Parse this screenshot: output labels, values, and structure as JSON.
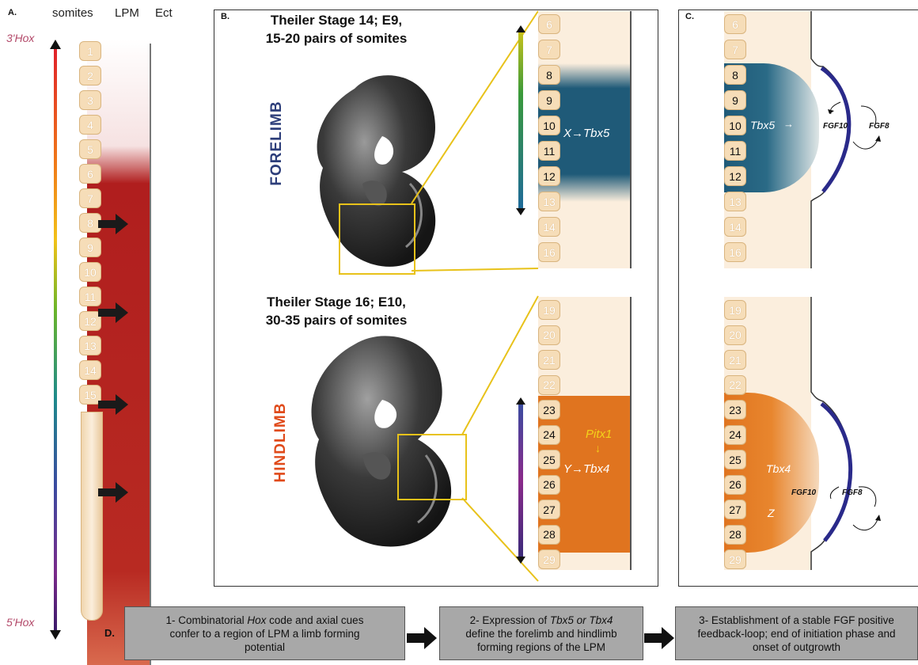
{
  "panelA": {
    "letter": "A.",
    "col_somites": "somites",
    "col_lpm": "LPM",
    "col_ect": "Ect",
    "hox_top": "3'Hox",
    "hox_bottom": "5'Hox",
    "somites": [
      "1",
      "2",
      "3",
      "4",
      "5",
      "6",
      "7",
      "8",
      "9",
      "10",
      "11",
      "12",
      "13",
      "14",
      "15"
    ]
  },
  "panelB": {
    "letter": "B.",
    "stage1_line1": "Theiler Stage 14; E9,",
    "stage1_line2": "15-20 pairs of somites",
    "stage2_line1": "Theiler Stage 16; E10,",
    "stage2_line2": "30-35 pairs of somites",
    "forelimb_label": "FORELIMB",
    "hindlimb_label": "HINDLIMB",
    "fore_somites": [
      "6",
      "7",
      "8",
      "9",
      "10",
      "11",
      "12",
      "13",
      "14",
      "16"
    ],
    "hind_somites": [
      "19",
      "20",
      "21",
      "22",
      "23",
      "24",
      "25",
      "26",
      "27",
      "28",
      "29"
    ],
    "fore_gene": "X→Tbx5",
    "hind_pitx": "Pitx1",
    "hind_gene": "Y→Tbx4"
  },
  "panelC": {
    "letter": "C.",
    "fore_somites": [
      "6",
      "7",
      "8",
      "9",
      "10",
      "11",
      "12",
      "13",
      "14",
      "16"
    ],
    "hind_somites": [
      "19",
      "20",
      "21",
      "22",
      "23",
      "24",
      "25",
      "26",
      "27",
      "28",
      "29"
    ],
    "tbx5": "Tbx5",
    "fgf10_top": "FGF10",
    "fgf8_top": "FGF8",
    "tbx4": "Tbx4",
    "z": "Z",
    "fgf10_bottom": "FGF10",
    "fgf8_bottom": "FGF8"
  },
  "panelD": {
    "letter": "D.",
    "step1": [
      "1- Combinatorial ",
      "Hox",
      " code and axial cues",
      "confer to a region of LPM a limb forming",
      "potential"
    ],
    "step2": [
      "2- Expression of ",
      "Tbx5 or Tbx4",
      "define the forelimb and hindlimb",
      "forming regions of the LPM"
    ],
    "step3": [
      "3- Establishment of a stable FGF positive",
      "feedback-loop; end of initiation phase and",
      "onset of outgrowth"
    ]
  },
  "colors": {
    "lpm_red": "#b01e1e",
    "forelimb_blue": "#1f5a78",
    "hindlimb_orange": "#e0741f",
    "gold": "#e8c21a",
    "aer_blue": "#2a2a8a",
    "forelimb_label": "#2d3e7a",
    "hindlimb_label": "#e04a1a"
  }
}
